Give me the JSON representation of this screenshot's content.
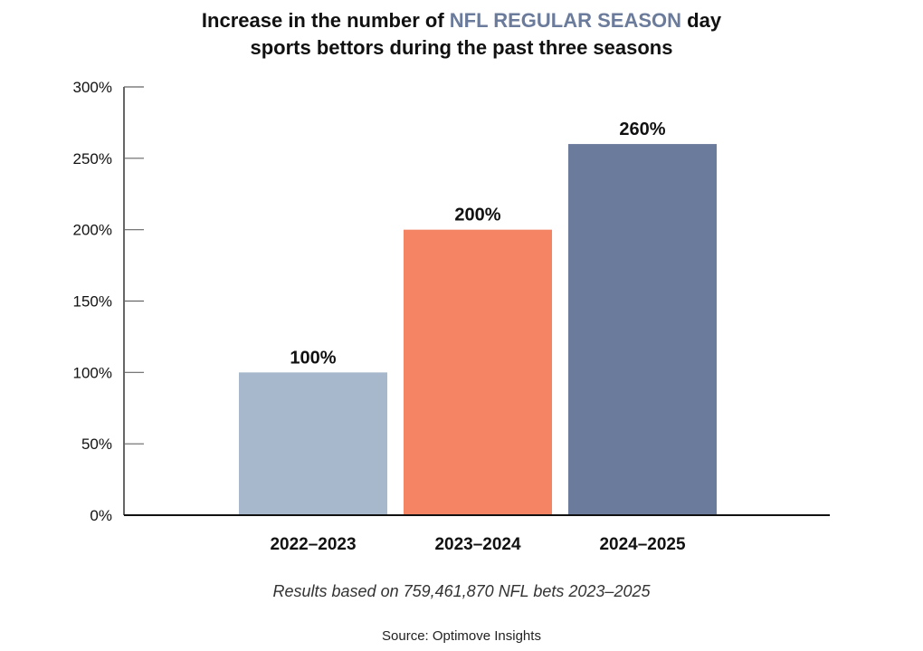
{
  "chart_data": {
    "type": "bar",
    "title_parts": {
      "pre": "Increase in the number of ",
      "highlight": "NFL REGULAR SEASON",
      "post_line1": " day",
      "line2": "sports bettors during the past three seasons"
    },
    "categories": [
      "2022–2023",
      "2023–2024",
      "2024–2025"
    ],
    "values": [
      100,
      200,
      260
    ],
    "data_labels": [
      "100%",
      "200%",
      "260%"
    ],
    "bar_colors": [
      "#a8b8cc",
      "#f48463",
      "#6b7b9b"
    ],
    "highlight_color": "#6b7b9b",
    "ylim": [
      0,
      300
    ],
    "yticks": [
      0,
      50,
      100,
      150,
      200,
      250,
      300
    ],
    "ytick_labels": [
      "0%",
      "50%",
      "100%",
      "150%",
      "200%",
      "250%",
      "300%"
    ],
    "xlabel": "",
    "ylabel": "",
    "grid": false
  },
  "note": "Results based on 759,461,870 NFL bets 2023–2025",
  "source": "Source: Optimove Insights"
}
